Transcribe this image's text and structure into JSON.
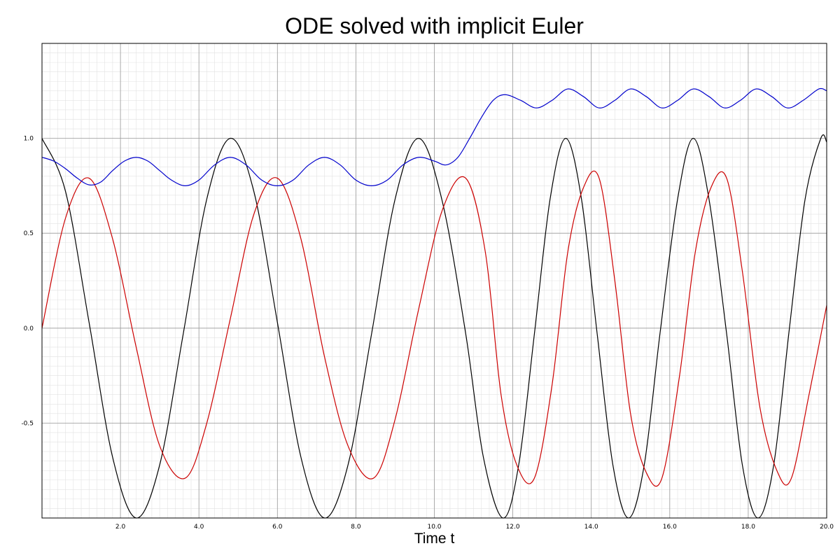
{
  "chart_data": {
    "type": "line",
    "title": "ODE solved with implicit Euler",
    "xlabel": "Time t",
    "ylabel": "",
    "xlim": [
      0,
      20
    ],
    "ylim": [
      -1.0,
      1.5
    ],
    "grid": true,
    "x_ticks": [
      {
        "value": 2,
        "label": "2.0"
      },
      {
        "value": 4,
        "label": "4.0"
      },
      {
        "value": 6,
        "label": "6.0"
      },
      {
        "value": 8,
        "label": "8.0"
      },
      {
        "value": 10,
        "label": "10.0"
      },
      {
        "value": 12,
        "label": "12.0"
      },
      {
        "value": 14,
        "label": "14.0"
      },
      {
        "value": 16,
        "label": "16.0"
      },
      {
        "value": 18,
        "label": "18.0"
      },
      {
        "value": 20,
        "label": "20.0"
      }
    ],
    "y_ticks": [
      {
        "value": -0.5,
        "label": "-0.5"
      },
      {
        "value": 0,
        "label": "0.0"
      },
      {
        "value": 0.5,
        "label": "0.5"
      },
      {
        "value": 1.0,
        "label": "1.0"
      }
    ],
    "series": [
      {
        "color": "#000000",
        "x": [
          0,
          0.6,
          1.2,
          1.8,
          2.4,
          3.0,
          3.6,
          4.2,
          4.8,
          5.4,
          6.0,
          6.6,
          7.2,
          7.8,
          8.4,
          9.0,
          9.6,
          10.2,
          10.8,
          11.25,
          11.75,
          12.15,
          12.55,
          12.95,
          13.35,
          13.75,
          14.15,
          14.55,
          14.95,
          15.35,
          15.75,
          16.2,
          16.6,
          17.0,
          17.45,
          17.85,
          18.25,
          18.65,
          19.05,
          19.45,
          19.85,
          20.0
        ],
        "y": [
          1.0,
          0.72,
          0.03,
          -0.68,
          -1.0,
          -0.72,
          -0.03,
          0.68,
          1.0,
          0.72,
          0.03,
          -0.68,
          -1.0,
          -0.72,
          -0.03,
          0.68,
          1.0,
          0.67,
          -0.03,
          -0.68,
          -1.0,
          -0.72,
          -0.03,
          0.68,
          1.0,
          0.68,
          -0.03,
          -0.72,
          -1.0,
          -0.72,
          -0.03,
          0.68,
          1.0,
          0.68,
          -0.03,
          -0.72,
          -1.0,
          -0.72,
          0.0,
          0.68,
          1.0,
          0.98
        ]
      },
      {
        "color": "#cc0000",
        "x": [
          0,
          0.6,
          1.2,
          1.8,
          2.4,
          3.0,
          3.65,
          4.2,
          4.8,
          5.4,
          6.0,
          6.6,
          7.2,
          7.8,
          8.45,
          9.0,
          9.6,
          10.2,
          10.8,
          11.3,
          11.7,
          12.1,
          12.55,
          13.0,
          13.4,
          13.8,
          14.2,
          14.6,
          15.0,
          15.4,
          15.8,
          16.25,
          16.65,
          17.05,
          17.45,
          17.85,
          18.3,
          18.75,
          19.1,
          19.55,
          20.0
        ],
        "y": [
          0.0,
          0.58,
          0.79,
          0.47,
          -0.1,
          -0.62,
          -0.79,
          -0.5,
          0.05,
          0.6,
          0.79,
          0.47,
          -0.15,
          -0.62,
          -0.79,
          -0.48,
          0.1,
          0.62,
          0.79,
          0.4,
          -0.35,
          -0.72,
          -0.79,
          -0.3,
          0.4,
          0.74,
          0.79,
          0.25,
          -0.45,
          -0.76,
          -0.79,
          -0.25,
          0.4,
          0.74,
          0.79,
          0.3,
          -0.42,
          -0.76,
          -0.79,
          -0.35,
          0.12
        ]
      },
      {
        "color": "#0000cc",
        "x": [
          0,
          0.3,
          0.6,
          0.9,
          1.2,
          1.5,
          1.8,
          2.1,
          2.4,
          2.7,
          3.0,
          3.3,
          3.65,
          4.0,
          4.4,
          4.8,
          5.2,
          5.6,
          6.0,
          6.4,
          6.8,
          7.2,
          7.6,
          8.0,
          8.4,
          8.8,
          9.2,
          9.6,
          10.0,
          10.3,
          10.6,
          10.9,
          11.2,
          11.5,
          11.8,
          12.2,
          12.6,
          13.0,
          13.4,
          13.8,
          14.2,
          14.6,
          15.0,
          15.4,
          15.8,
          16.2,
          16.6,
          17.0,
          17.4,
          17.8,
          18.2,
          18.6,
          19.0,
          19.4,
          19.8,
          20.0
        ],
        "y": [
          0.9,
          0.88,
          0.84,
          0.79,
          0.755,
          0.77,
          0.83,
          0.88,
          0.9,
          0.88,
          0.83,
          0.78,
          0.75,
          0.78,
          0.86,
          0.9,
          0.86,
          0.78,
          0.75,
          0.78,
          0.86,
          0.9,
          0.86,
          0.78,
          0.75,
          0.78,
          0.86,
          0.9,
          0.88,
          0.86,
          0.9,
          1.0,
          1.11,
          1.2,
          1.23,
          1.2,
          1.16,
          1.2,
          1.26,
          1.22,
          1.16,
          1.2,
          1.26,
          1.22,
          1.16,
          1.2,
          1.26,
          1.22,
          1.16,
          1.2,
          1.26,
          1.22,
          1.16,
          1.2,
          1.26,
          1.25
        ]
      }
    ]
  }
}
